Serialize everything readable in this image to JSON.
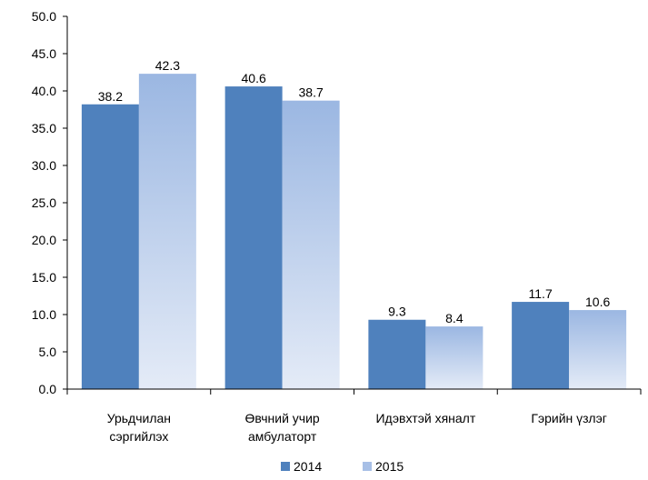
{
  "chart_data": {
    "type": "bar",
    "categories": [
      [
        "Урьдчилан",
        "сэргийлэх"
      ],
      [
        "Өвчний учир",
        "амбулаторт"
      ],
      [
        "Идэвхтэй хяналт"
      ],
      [
        "Гэрийн үзлэг"
      ]
    ],
    "series": [
      {
        "name": "2014",
        "values": [
          38.2,
          40.6,
          9.3,
          11.7
        ],
        "color": "#4f81bd"
      },
      {
        "name": "2015",
        "values": [
          42.3,
          38.7,
          8.4,
          10.6
        ],
        "color": "#a7bfe6"
      }
    ],
    "y_ticks": [
      "0.0",
      "5.0",
      "10.0",
      "15.0",
      "20.0",
      "25.0",
      "30.0",
      "35.0",
      "40.0",
      "45.0",
      "50.0"
    ],
    "ylim": [
      0,
      50
    ],
    "legend_position": "bottom",
    "grid": false
  }
}
